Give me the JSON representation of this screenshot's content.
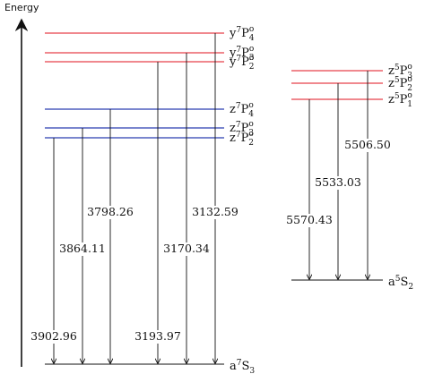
{
  "axis_label": "Energy",
  "colors": {
    "red": "#e8404a",
    "blue": "#2a3fb0",
    "black": "#111111"
  },
  "septet": {
    "ground": {
      "letter": "a",
      "sup": "7",
      "term": "S",
      "sub": "3"
    },
    "levels": [
      {
        "id": "y7P4",
        "letter": "y",
        "sup": "7",
        "term": "P",
        "sup2": "o",
        "sub": "4",
        "color": "red"
      },
      {
        "id": "y7P3",
        "letter": "y",
        "sup": "7",
        "term": "P",
        "sup2": "o",
        "sub": "3",
        "color": "red"
      },
      {
        "id": "y7P2",
        "letter": "y",
        "sup": "7",
        "term": "P",
        "sup2": "o",
        "sub": "2",
        "color": "red"
      },
      {
        "id": "z7P4",
        "letter": "z",
        "sup": "7",
        "term": "P",
        "sup2": "o",
        "sub": "4",
        "color": "blue"
      },
      {
        "id": "z7P3",
        "letter": "z",
        "sup": "7",
        "term": "P",
        "sup2": "o",
        "sub": "3",
        "color": "blue"
      },
      {
        "id": "z7P2",
        "letter": "z",
        "sup": "7",
        "term": "P",
        "sup2": "o",
        "sub": "2",
        "color": "blue"
      }
    ],
    "transitions": [
      {
        "from": "z7P2",
        "wavelength": "3902.96"
      },
      {
        "from": "z7P3",
        "wavelength": "3864.11"
      },
      {
        "from": "z7P4",
        "wavelength": "3798.26"
      },
      {
        "from": "y7P2",
        "wavelength": "3193.97"
      },
      {
        "from": "y7P3",
        "wavelength": "3170.34"
      },
      {
        "from": "y7P4",
        "wavelength": "3132.59"
      }
    ]
  },
  "quintet": {
    "ground": {
      "letter": "a",
      "sup": "5",
      "term": "S",
      "sub": "2"
    },
    "levels": [
      {
        "id": "z5P3",
        "letter": "z",
        "sup": "5",
        "term": "P",
        "sup2": "o",
        "sub": "3",
        "color": "red"
      },
      {
        "id": "z5P2",
        "letter": "z",
        "sup": "5",
        "term": "P",
        "sup2": "o",
        "sub": "2",
        "color": "red"
      },
      {
        "id": "z5P1",
        "letter": "z",
        "sup": "5",
        "term": "P",
        "sup2": "o",
        "sub": "1",
        "color": "red"
      }
    ],
    "transitions": [
      {
        "from": "z5P1",
        "wavelength": "5570.43"
      },
      {
        "from": "z5P2",
        "wavelength": "5533.03"
      },
      {
        "from": "z5P3",
        "wavelength": "5506.50"
      }
    ]
  }
}
